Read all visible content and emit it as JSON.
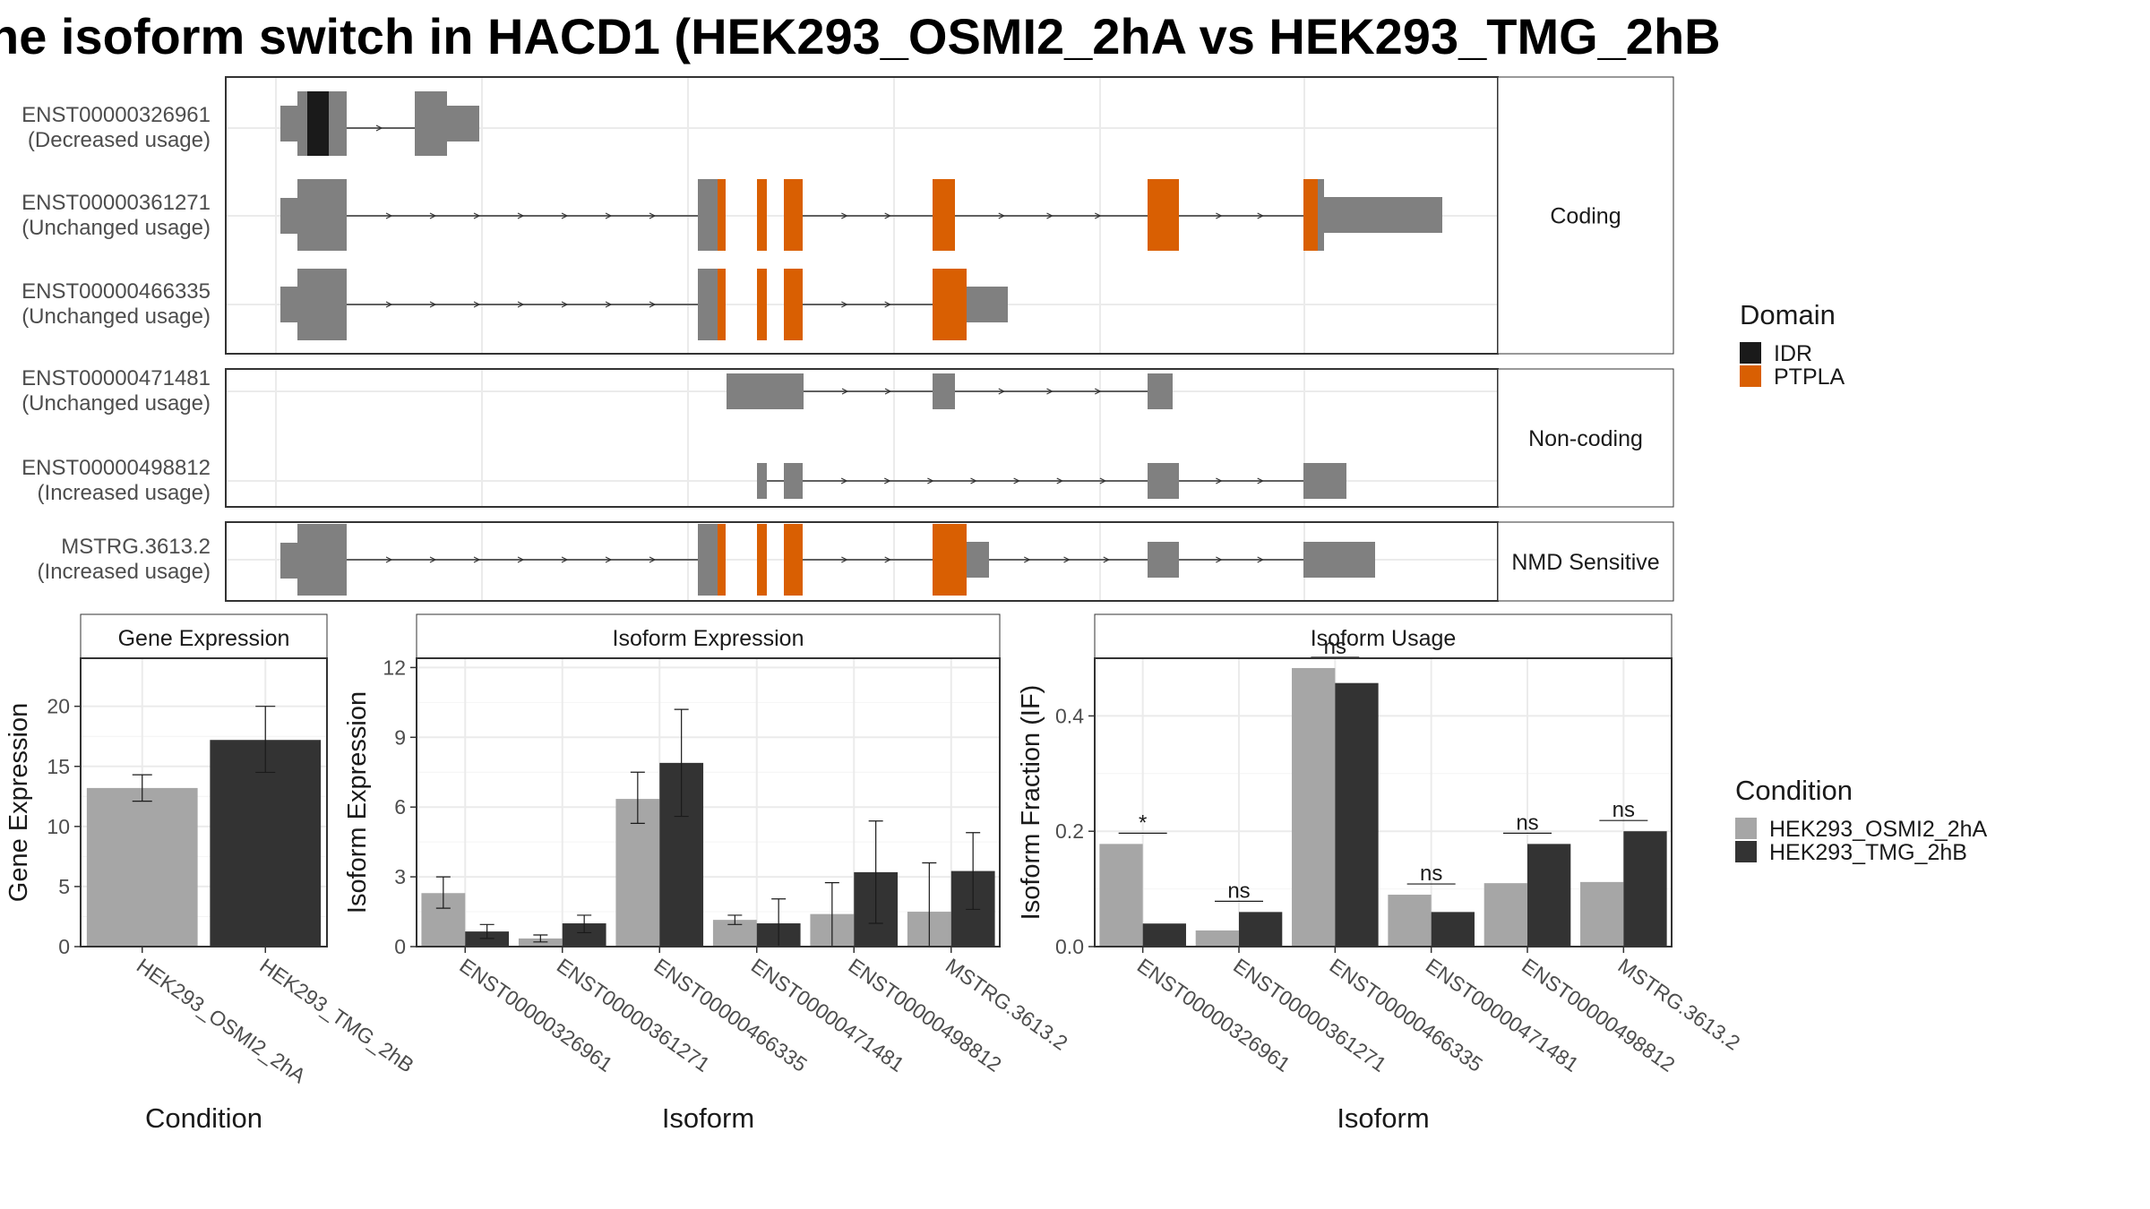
{
  "title": "he isoform switch in HACD1 (HEK293_OSMI2_2hA vs HEK293_TMG_2hB",
  "colors": {
    "exon": "#808080",
    "IDR": "#1a1a1a",
    "PTPLA": "#d95f02",
    "cond_a": "#a6a6a6",
    "cond_b": "#333333"
  },
  "structure": {
    "groups": [
      "Coding",
      "Non-coding",
      "NMD Sensitive"
    ],
    "domain_legend": {
      "title": "Domain",
      "items": [
        {
          "label": "IDR",
          "color": "#1a1a1a"
        },
        {
          "label": "PTPLA",
          "color": "#d95f02"
        }
      ]
    },
    "transcripts": [
      {
        "id": "ENST00000326961",
        "usage": "(Decreased usage)",
        "group": "Coding"
      },
      {
        "id": "ENST00000361271",
        "usage": "(Unchanged usage)",
        "group": "Coding"
      },
      {
        "id": "ENST00000466335",
        "usage": "(Unchanged usage)",
        "group": "Coding"
      },
      {
        "id": "ENST00000471481",
        "usage": "(Unchanged usage)",
        "group": "Non-coding"
      },
      {
        "id": "ENST00000498812",
        "usage": "(Increased usage)",
        "group": "Non-coding"
      },
      {
        "id": "MSTRG.3613.2",
        "usage": "(Increased usage)",
        "group": "NMD Sensitive"
      }
    ]
  },
  "condition_legend": {
    "title": "Condition",
    "items": [
      {
        "label": "HEK293_OSMI2_2hA",
        "color": "#a6a6a6"
      },
      {
        "label": "HEK293_TMG_2hB",
        "color": "#333333"
      }
    ]
  },
  "chart_data": [
    {
      "type": "bar",
      "title": "Gene Expression",
      "xlabel": "Condition",
      "ylabel": "Gene Expression",
      "ylim": [
        0,
        24
      ],
      "yticks": [
        0,
        5,
        10,
        15,
        20
      ],
      "categories": [
        "HEK293_OSMI2_2hA",
        "HEK293_TMG_2hB"
      ],
      "values": [
        13.2,
        17.2
      ],
      "error_low": [
        12.1,
        14.5
      ],
      "error_high": [
        14.3,
        20.0
      ]
    },
    {
      "type": "bar",
      "title": "Isoform Expression",
      "xlabel": "Isoform",
      "ylabel": "Isoform Expression",
      "ylim": [
        0,
        12.4
      ],
      "yticks": [
        0,
        3,
        6,
        9,
        12
      ],
      "categories": [
        "ENST00000326961",
        "ENST00000361271",
        "ENST00000466335",
        "ENST00000471481",
        "ENST00000498812",
        "MSTRG.3613.2"
      ],
      "series": [
        {
          "name": "HEK293_OSMI2_2hA",
          "values": [
            2.3,
            0.35,
            6.35,
            1.15,
            1.4,
            1.5
          ],
          "error_low": [
            1.65,
            0.2,
            5.3,
            0.95,
            0.0,
            0.0
          ],
          "error_high": [
            3.0,
            0.5,
            7.5,
            1.35,
            2.75,
            3.6
          ]
        },
        {
          "name": "HEK293_TMG_2hB",
          "values": [
            0.65,
            1.0,
            7.9,
            1.0,
            3.2,
            3.25
          ],
          "error_low": [
            0.35,
            0.6,
            5.6,
            0.0,
            1.0,
            1.6
          ],
          "error_high": [
            0.95,
            1.35,
            10.2,
            2.05,
            5.4,
            4.9
          ]
        }
      ]
    },
    {
      "type": "bar",
      "title": "Isoform Usage",
      "xlabel": "Isoform",
      "ylabel": "Isoform Fraction (IF)",
      "ylim": [
        0,
        0.5
      ],
      "yticks": [
        "0.0",
        "0.2",
        "0.4"
      ],
      "categories": [
        "ENST00000326961",
        "ENST00000361271",
        "ENST00000466335",
        "ENST00000471481",
        "ENST00000498812",
        "MSTRG.3613.2"
      ],
      "series": [
        {
          "name": "HEK293_OSMI2_2hA",
          "values": [
            0.178,
            0.028,
            0.483,
            0.09,
            0.11,
            0.112
          ]
        },
        {
          "name": "HEK293_TMG_2hB",
          "values": [
            0.04,
            0.06,
            0.457,
            0.06,
            0.178,
            0.2
          ]
        }
      ],
      "significance": [
        "*",
        "ns",
        "ns",
        "ns",
        "ns",
        "ns"
      ]
    }
  ]
}
